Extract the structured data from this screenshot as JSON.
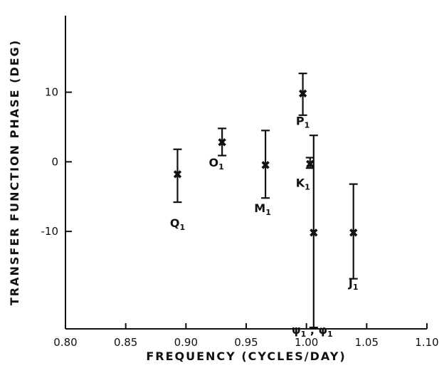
{
  "chart_data": {
    "type": "scatter",
    "xlabel": "FREQUENCY (CYCLES/DAY)",
    "ylabel": "TRANSFER FUNCTION PHASE (DEG)",
    "xlim": [
      0.8,
      1.1
    ],
    "ylim": [
      -24,
      21
    ],
    "xticks": [
      "0.80",
      "0.85",
      "0.90",
      "0.95",
      "1.00",
      "1.05",
      "1.10"
    ],
    "yticks": [
      "10",
      "0",
      "-10"
    ],
    "grid": false,
    "marker": "x",
    "points": [
      {
        "x": 0.893,
        "y": -1.8,
        "err_low": -5.8,
        "err_high": 1.8,
        "label": "Q",
        "sub": "1"
      },
      {
        "x": 0.93,
        "y": 2.8,
        "err_low": 0.9,
        "err_high": 4.8,
        "label": "O",
        "sub": "1"
      },
      {
        "x": 0.966,
        "y": -0.5,
        "err_low": -5.2,
        "err_high": 4.5,
        "label": "M",
        "sub": "1"
      },
      {
        "x": 0.997,
        "y": 9.8,
        "err_low": 6.7,
        "err_high": 12.7,
        "label": "P",
        "sub": "1"
      },
      {
        "x": 1.003,
        "y": -0.3,
        "err_low": -0.9,
        "err_high": 0.6,
        "label": "K",
        "sub": "1"
      },
      {
        "x": 1.006,
        "y": -10.2,
        "err_low": -23.8,
        "err_high": 3.8,
        "label": "ψ",
        "sub": "1",
        "label2": "φ",
        "sub2": "1"
      },
      {
        "x": 1.039,
        "y": -10.2,
        "err_low": -16.8,
        "err_high": -3.2,
        "label": "J",
        "sub": "1"
      }
    ]
  }
}
